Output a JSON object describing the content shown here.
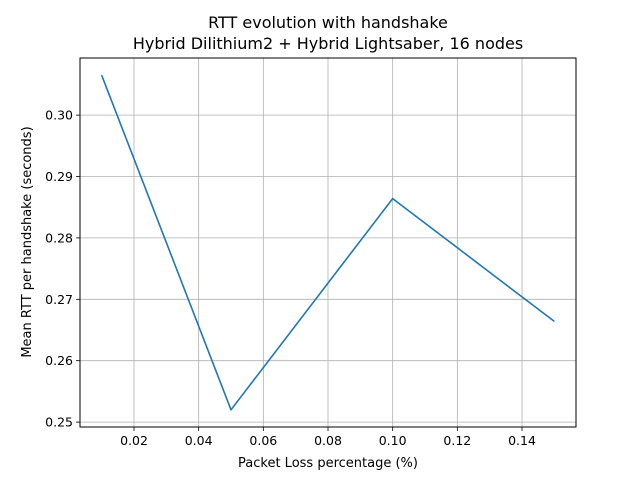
{
  "chart_data": {
    "type": "line",
    "title": "RTT evolution with handshake",
    "subtitle": "Hybrid Dilithium2 + Hybrid Lightsaber, 16 nodes",
    "xlabel": "Packet Loss percentage (%)",
    "ylabel": "Mean RTT per handshake (seconds)",
    "xlim": [
      0.0033,
      0.1567
    ],
    "ylim": [
      0.2492,
      0.3093
    ],
    "x_ticks": [
      "0.02",
      "0.04",
      "0.06",
      "0.08",
      "0.10",
      "0.12",
      "0.14"
    ],
    "y_ticks": [
      "0.25",
      "0.26",
      "0.27",
      "0.28",
      "0.29",
      "0.30"
    ],
    "grid": true,
    "series": [
      {
        "color": "#1f77b4",
        "x": [
          0.01,
          0.05,
          0.1,
          0.15
        ],
        "y": [
          0.3065,
          0.252,
          0.2864,
          0.2664
        ]
      }
    ]
  }
}
